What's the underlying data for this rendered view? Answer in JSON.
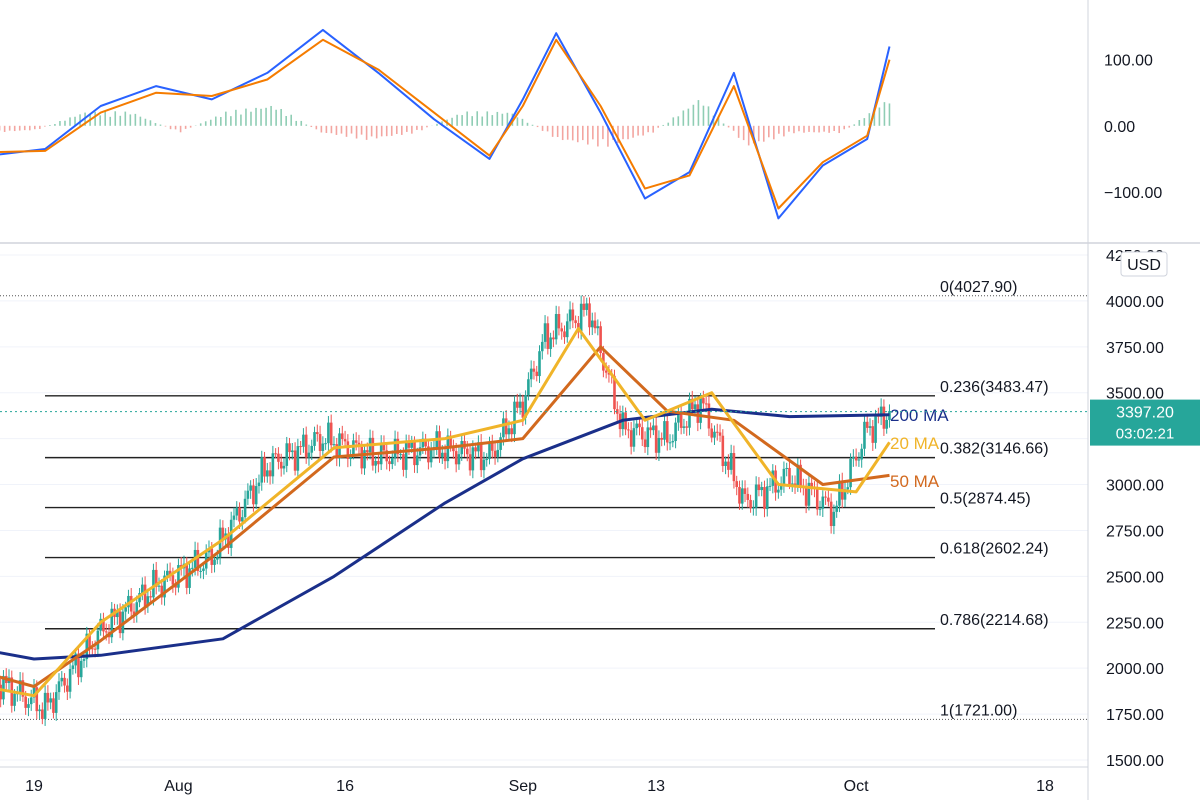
{
  "chart_data": [
    {
      "type": "line",
      "panel": "oscillator",
      "ylim": [
        -150,
        160
      ],
      "ticks": [
        100,
        0,
        -100
      ],
      "tick_labels": [
        "100.00",
        "0.00",
        "−100.00"
      ],
      "x_dates": [
        "2021-07-15",
        "2021-07-20",
        "2021-07-25",
        "2021-07-30",
        "2021-08-04",
        "2021-08-09",
        "2021-08-14",
        "2021-08-19",
        "2021-08-24",
        "2021-08-29",
        "2021-09-01",
        "2021-09-04",
        "2021-09-08",
        "2021-09-12",
        "2021-09-16",
        "2021-09-20",
        "2021-09-24",
        "2021-09-28",
        "2021-10-02",
        "2021-10-04"
      ],
      "series": [
        {
          "color": "#2962ff",
          "values": [
            -45,
            -35,
            30,
            60,
            40,
            80,
            145,
            80,
            10,
            -50,
            40,
            140,
            20,
            -110,
            -70,
            80,
            -140,
            -60,
            -20,
            120
          ]
        },
        {
          "color": "#f57c00",
          "values": [
            -40,
            -38,
            20,
            50,
            45,
            70,
            130,
            85,
            20,
            -45,
            30,
            130,
            30,
            -95,
            -75,
            60,
            -125,
            -55,
            -15,
            100
          ]
        }
      ],
      "histogram": [
        -5,
        -3,
        10,
        10,
        -5,
        10,
        15,
        -5,
        -10,
        -5,
        10,
        10,
        -10,
        -15,
        -5,
        20,
        -15,
        -5,
        -5,
        20
      ]
    },
    {
      "type": "line",
      "panel": "price",
      "currency_badge": "USD",
      "x_ticks": [
        "19",
        "Aug",
        "16",
        "Sep",
        "13",
        "Oct",
        "18"
      ],
      "ylim": [
        1500,
        4250
      ],
      "y_ticks": [
        4250,
        4000,
        3750,
        3500,
        3250,
        3000,
        2750,
        2500,
        2250,
        2000,
        1750,
        1500
      ],
      "y_tick_labels": [
        "4250.00",
        "4000.00",
        "3750.00",
        "3500.00",
        "3250.00",
        "3000.00",
        "2750.00",
        "2500.00",
        "2250.00",
        "2000.00",
        "1750.00",
        "1500.00"
      ],
      "fib_levels": [
        {
          "label": "0(4027.90)",
          "value": 4027.9,
          "dotted": true
        },
        {
          "label": "0.236(3483.47)",
          "value": 3483.47
        },
        {
          "label": "0.382(3146.66)",
          "value": 3146.66
        },
        {
          "label": "0.5(2874.45)",
          "value": 2874.45
        },
        {
          "label": "0.618(2602.24)",
          "value": 2602.24
        },
        {
          "label": "0.786(2214.68)",
          "value": 2214.68
        },
        {
          "label": "1(1721.00)",
          "value": 1721.0,
          "dotted": true
        }
      ],
      "current_price": {
        "value": 3397.2,
        "label": "3397.20",
        "countdown": "03:02:21"
      },
      "ma_labels": [
        {
          "text": "200 MA",
          "color": "#1a2f8a",
          "value": 3380
        },
        {
          "text": "20 MA",
          "color": "#f0b429",
          "value": 3225
        },
        {
          "text": "50 MA",
          "color": "#d2691e",
          "value": 3020
        }
      ],
      "close_dates": [
        "2021-07-15",
        "2021-07-20",
        "2021-07-25",
        "2021-07-30",
        "2021-08-04",
        "2021-08-09",
        "2021-08-14",
        "2021-08-19",
        "2021-08-24",
        "2021-08-29",
        "2021-09-01",
        "2021-09-03",
        "2021-09-07",
        "2021-09-10",
        "2021-09-14",
        "2021-09-17",
        "2021-09-21",
        "2021-09-25",
        "2021-09-29",
        "2021-10-02",
        "2021-10-04"
      ],
      "close": [
        1950,
        1780,
        2200,
        2450,
        2600,
        3100,
        3250,
        3150,
        3200,
        3150,
        3450,
        3800,
        3950,
        3300,
        3250,
        3450,
        2900,
        3050,
        2850,
        3300,
        3397
      ],
      "ma_series": [
        {
          "name": "200 MA",
          "color": "#1a2f8a",
          "dates": [
            "2021-07-10",
            "2021-07-19",
            "2021-07-25",
            "2021-08-05",
            "2021-08-15",
            "2021-08-25",
            "2021-09-01",
            "2021-09-10",
            "2021-09-18",
            "2021-09-25",
            "2021-10-04"
          ],
          "values": [
            2150,
            2050,
            2070,
            2160,
            2500,
            2900,
            3140,
            3350,
            3410,
            3370,
            3380
          ]
        },
        {
          "name": "50 MA",
          "color": "#d2691e",
          "dates": [
            "2021-07-10",
            "2021-07-19",
            "2021-07-25",
            "2021-08-05",
            "2021-08-15",
            "2021-08-25",
            "2021-09-01",
            "2021-09-08",
            "2021-09-14",
            "2021-09-20",
            "2021-09-28",
            "2021-10-04"
          ],
          "values": [
            2050,
            1900,
            2150,
            2650,
            3150,
            3200,
            3250,
            3750,
            3400,
            3350,
            3000,
            3050
          ]
        },
        {
          "name": "20 MA",
          "color": "#f0b429",
          "dates": [
            "2021-07-10",
            "2021-07-19",
            "2021-07-25",
            "2021-08-05",
            "2021-08-15",
            "2021-08-25",
            "2021-09-01",
            "2021-09-06",
            "2021-09-12",
            "2021-09-18",
            "2021-09-24",
            "2021-10-01",
            "2021-10-04"
          ],
          "values": [
            1950,
            1850,
            2250,
            2700,
            3200,
            3250,
            3350,
            3850,
            3350,
            3500,
            3000,
            2960,
            3230
          ]
        }
      ]
    }
  ]
}
